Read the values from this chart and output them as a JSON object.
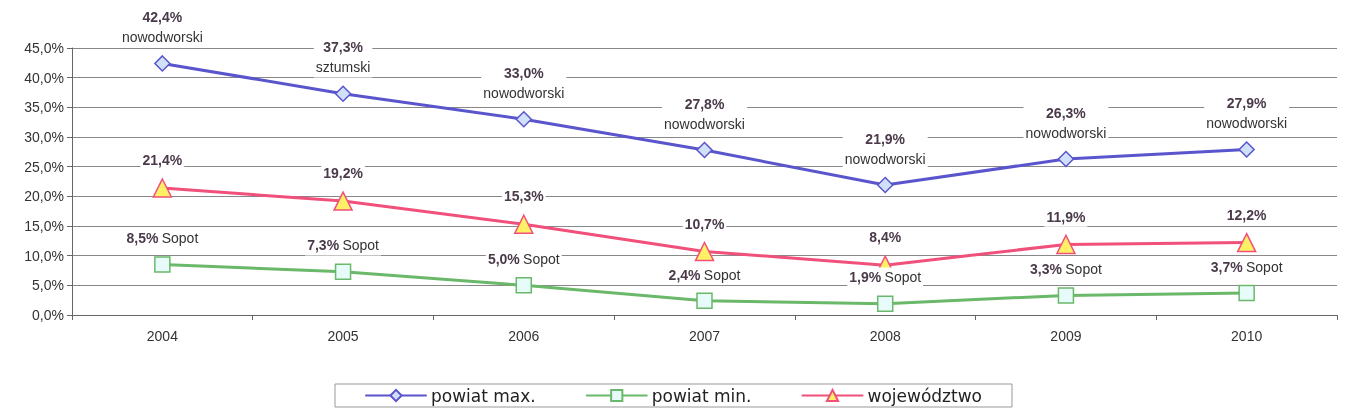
{
  "chart_data": {
    "type": "line",
    "categories": [
      "2004",
      "2005",
      "2006",
      "2007",
      "2008",
      "2009",
      "2010"
    ],
    "series": [
      {
        "name": "powiat max.",
        "color": "#5a55cc",
        "marker": "diamond",
        "values": [
          42.4,
          37.3,
          33.0,
          27.8,
          21.9,
          26.3,
          27.9
        ],
        "value_labels": [
          "42,4%",
          "37,3%",
          "33,0%",
          "27,8%",
          "21,9%",
          "26,3%",
          "27,9%"
        ]
      },
      {
        "name": "powiat min.",
        "color": "#6ab86a",
        "marker": "square",
        "values": [
          8.5,
          7.3,
          5.0,
          2.4,
          1.9,
          3.3,
          3.7
        ],
        "value_labels": [
          "8,5%",
          "7,3%",
          "5,0%",
          "2,4%",
          "1,9%",
          "3,3%",
          "3,7%"
        ]
      },
      {
        "name": "województwo",
        "color": "#f0507a",
        "marker": "triangle",
        "values": [
          21.4,
          19.2,
          15.3,
          10.7,
          8.4,
          11.9,
          12.2
        ],
        "value_labels": [
          "21,4%",
          "19,2%",
          "15,3%",
          "10,7%",
          "8,4%",
          "11,9%",
          "12,2%"
        ]
      }
    ],
    "annotations": [
      {
        "text": "nowodworski",
        "x": "2004",
        "y": 42.4
      },
      {
        "text": "sztumski",
        "x": "2005",
        "y": 37.3
      },
      {
        "text": "nowodworski",
        "x": "2006",
        "y": 33.0
      },
      {
        "text": "nowodworski",
        "x": "2007",
        "y": 27.8
      },
      {
        "text": "nowodworski",
        "x": "2008",
        "y": 21.9
      },
      {
        "text": "nowodworski",
        "x": "2009",
        "y": 26.3
      },
      {
        "text": "nowodworski",
        "x": "2010",
        "y": 27.9
      },
      {
        "text": "Sopot",
        "x": "2004",
        "y": 8.5
      },
      {
        "text": "Sopot",
        "x": "2005",
        "y": 7.3
      },
      {
        "text": "Sopot",
        "x": "2006",
        "y": 5.0
      },
      {
        "text": "Sopot",
        "x": "2007",
        "y": 2.4
      },
      {
        "text": "Sopot",
        "x": "2008",
        "y": 1.9
      },
      {
        "text": "Sopot",
        "x": "2009",
        "y": 3.3
      },
      {
        "text": "Sopot",
        "x": "2010",
        "y": 3.7
      }
    ],
    "ylim": [
      0,
      45
    ],
    "yticks": [
      {
        "value": 0,
        "label": "0,0%"
      },
      {
        "value": 5,
        "label": "5,0%"
      },
      {
        "value": 10,
        "label": "10,0%"
      },
      {
        "value": 15,
        "label": "15,0%"
      },
      {
        "value": 20,
        "label": "20,0%"
      },
      {
        "value": 25,
        "label": "25,0%"
      },
      {
        "value": 30,
        "label": "30,0%"
      },
      {
        "value": 35,
        "label": "35,0%"
      },
      {
        "value": 40,
        "label": "40,0%"
      },
      {
        "value": 45,
        "label": "45,0%"
      }
    ],
    "grid": "y",
    "legend": "bottom",
    "line_style": "solid"
  }
}
